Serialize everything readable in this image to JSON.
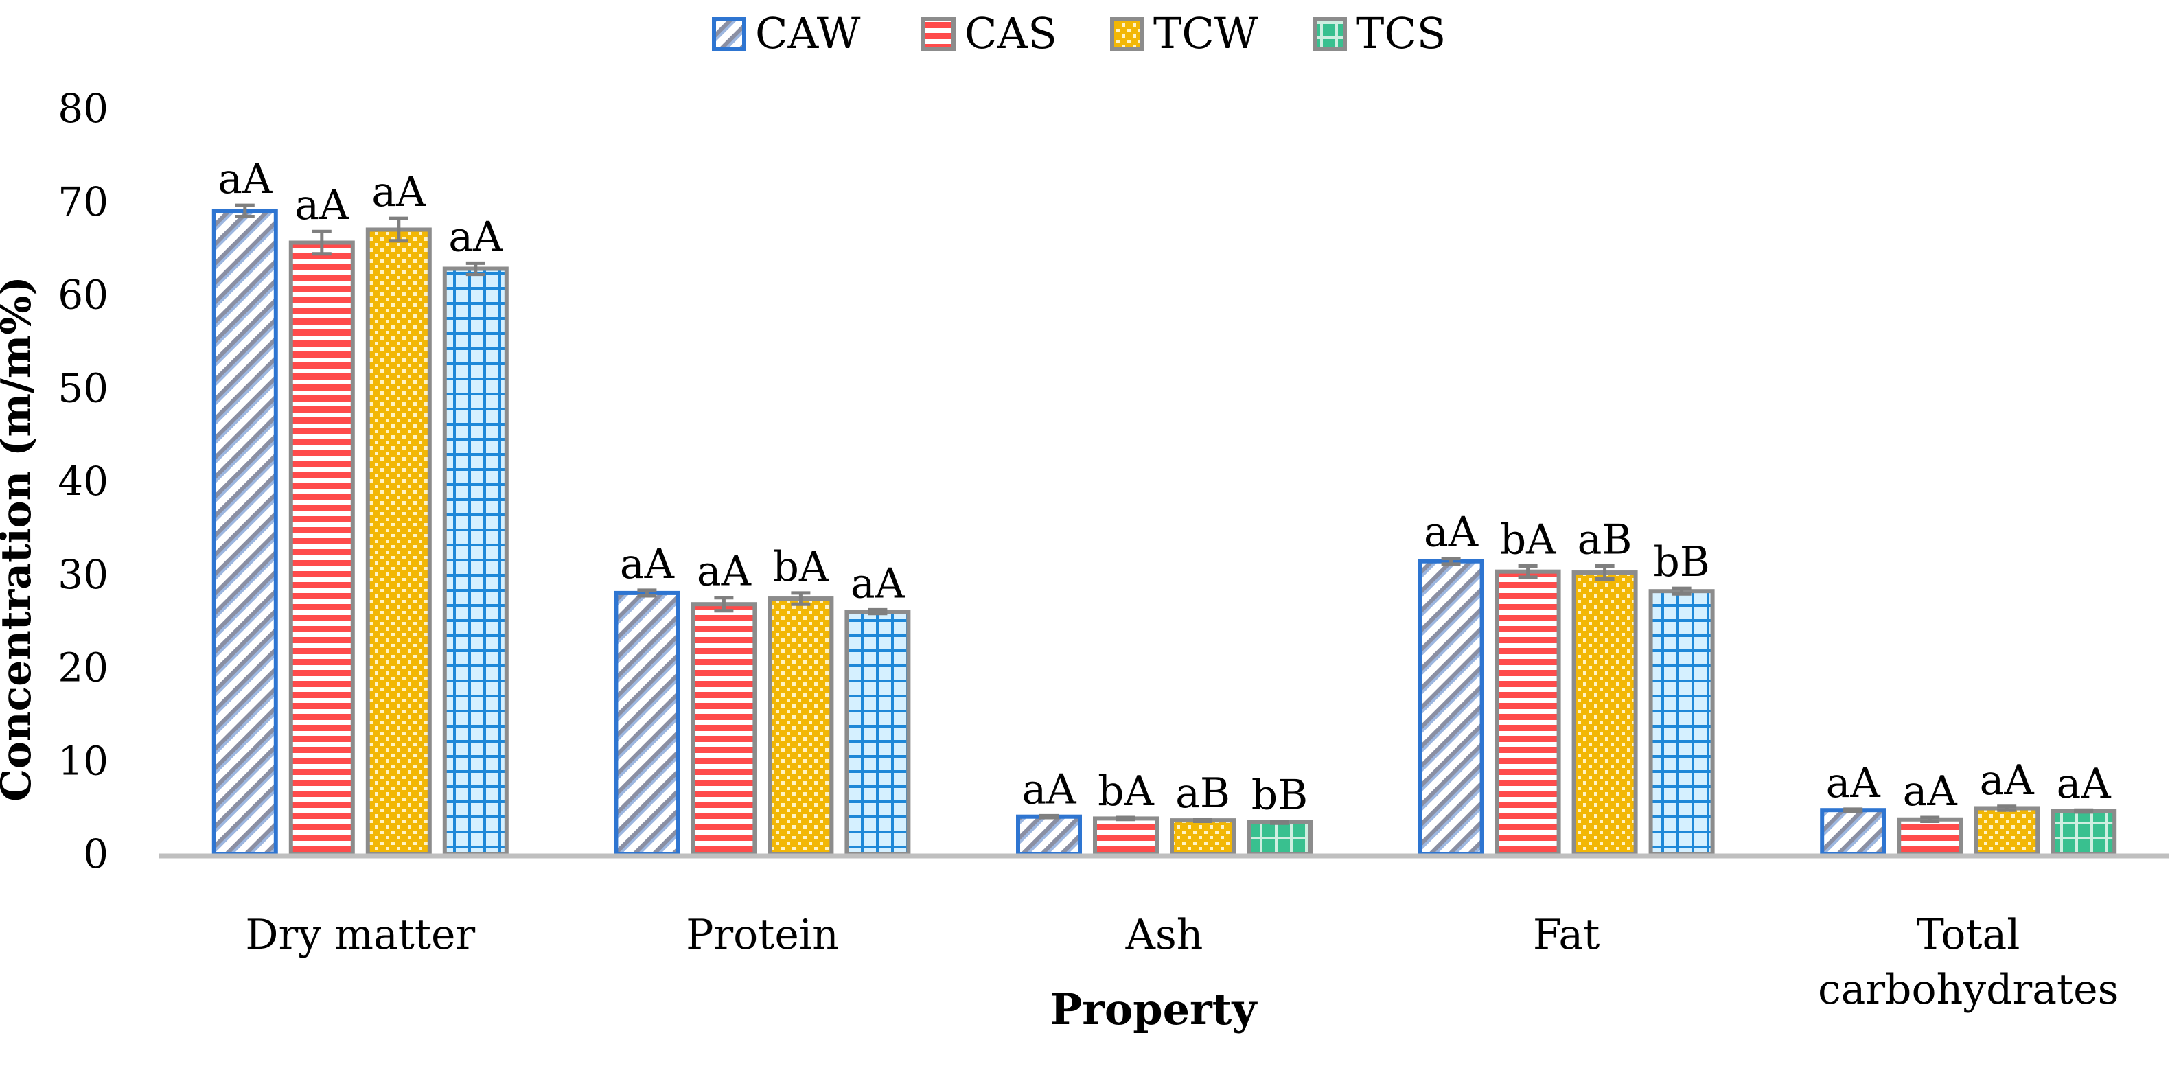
{
  "chart_data": {
    "type": "bar",
    "title": "",
    "xlabel": "Property",
    "ylabel": "Concentration (m/m%)",
    "ylim": [
      0,
      80
    ],
    "yticks": [
      0,
      10,
      20,
      30,
      40,
      50,
      60,
      70,
      80
    ],
    "grid": false,
    "legend_position": "top-center",
    "categories": [
      "Dry matter",
      "Protein",
      "Ash",
      "Fat",
      "Total carbohydrates"
    ],
    "series": [
      {
        "name": "CAW",
        "values": [
          69.0,
          28.0,
          4.0,
          31.4,
          4.7
        ],
        "errors": [
          0.6,
          0.3,
          0.1,
          0.3,
          0.1
        ],
        "labels": [
          "aA",
          "aA",
          "aA",
          "aA",
          "aA"
        ],
        "color": "#4472c4",
        "border": "#2e75d1",
        "pattern": "diag"
      },
      {
        "name": "CAS",
        "values": [
          65.6,
          26.8,
          3.8,
          30.3,
          3.7
        ],
        "errors": [
          1.2,
          0.7,
          0.1,
          0.6,
          0.2
        ],
        "labels": [
          "aA",
          "aA",
          "bA",
          "bA",
          "aA"
        ],
        "color": "#ff5050",
        "border": "#8c8c8c",
        "pattern": "horiz"
      },
      {
        "name": "TCW",
        "values": [
          67.0,
          27.4,
          3.6,
          30.2,
          4.9
        ],
        "errors": [
          1.2,
          0.6,
          0.1,
          0.7,
          0.2
        ],
        "labels": [
          "aA",
          "bA",
          "aB",
          "aB",
          "aA"
        ],
        "color": "#ffc000",
        "border": "#8c8c8c",
        "pattern": "dots"
      },
      {
        "name": "TCS",
        "values": [
          62.8,
          26.0,
          3.4,
          28.2,
          4.6
        ],
        "errors": [
          0.6,
          0.2,
          0.1,
          0.3,
          0.1
        ],
        "labels": [
          "aA",
          "aA",
          "bB",
          "bB",
          "aA"
        ],
        "color": "#1f8fd6",
        "border": "#8c8c8c",
        "pattern": "grid"
      }
    ]
  }
}
